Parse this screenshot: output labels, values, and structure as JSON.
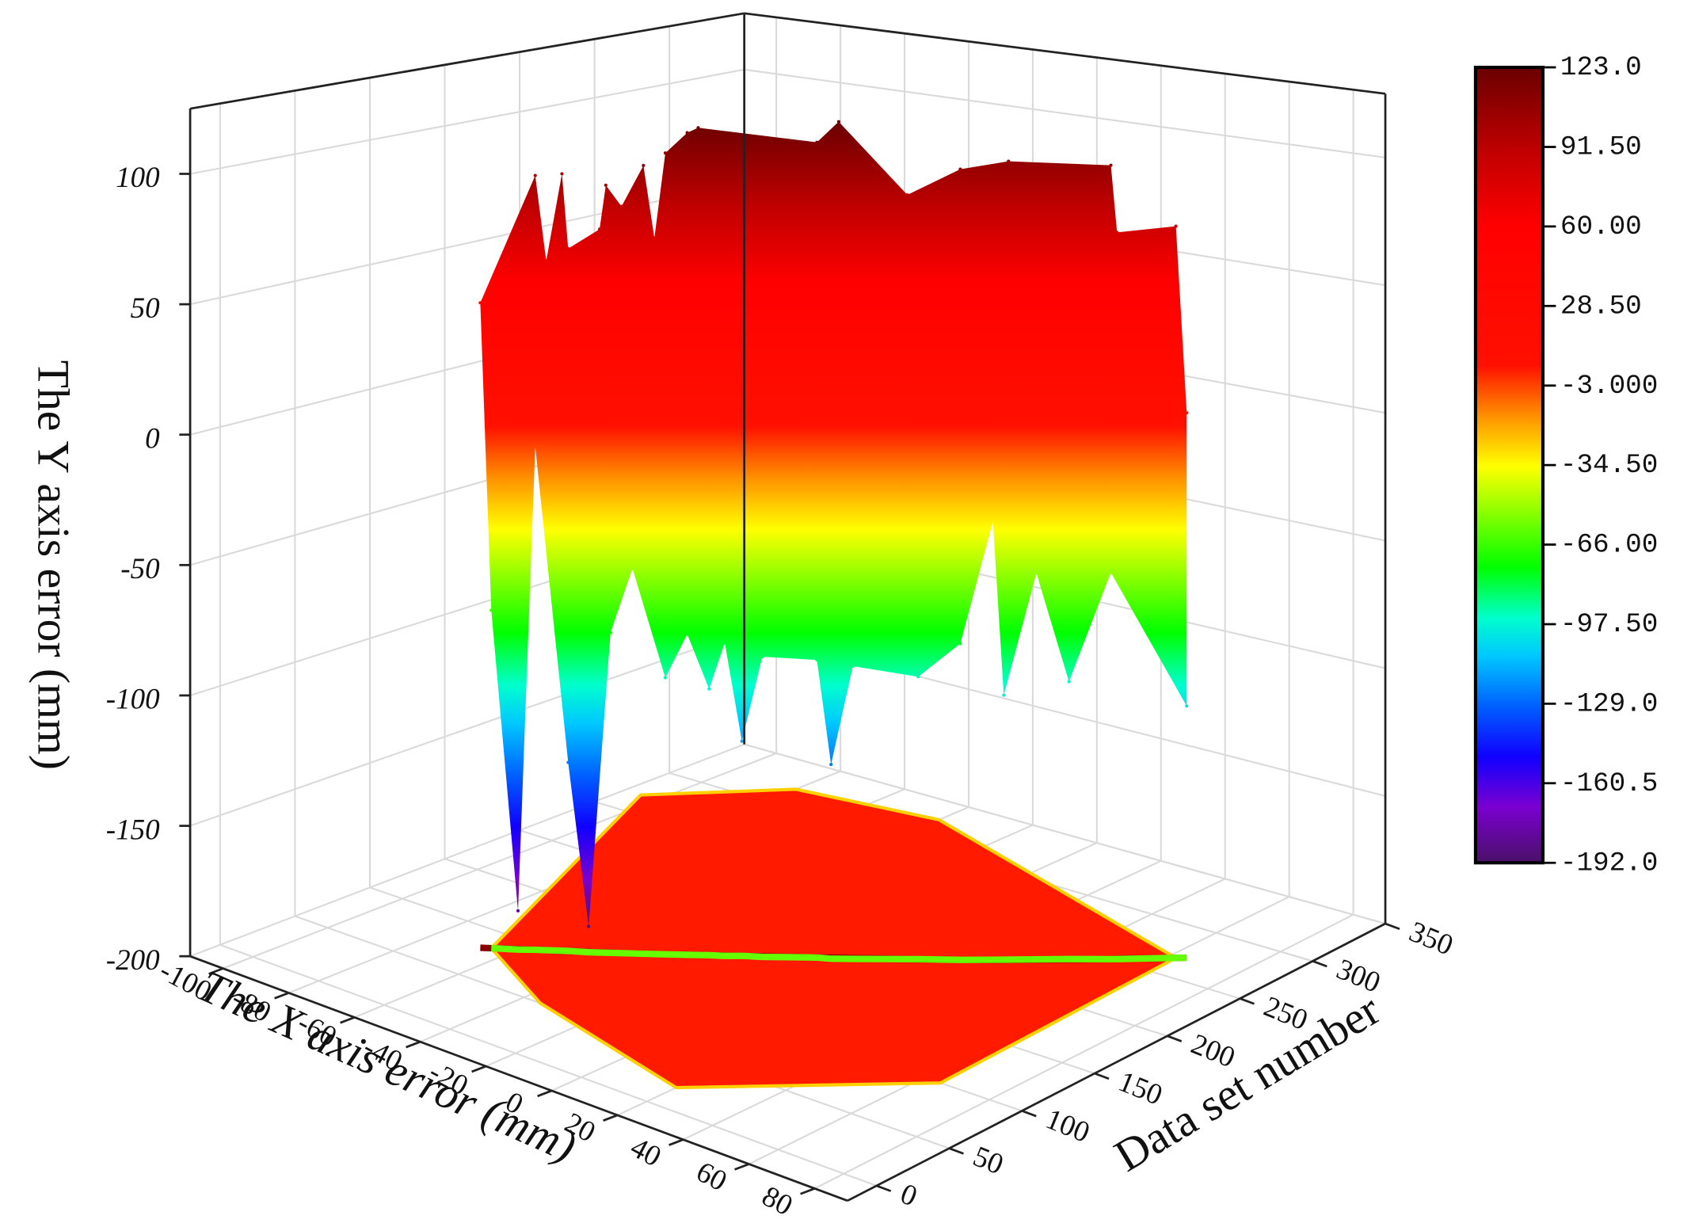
{
  "chart_data": {
    "type": "surface3d",
    "x_label": "The X axis error (mm)",
    "y_label": "Data set number",
    "z_label": "The Y axis error (mm)",
    "xlim": [
      -110,
      90
    ],
    "xticks": [
      -100,
      -80,
      -60,
      -40,
      -20,
      0,
      20,
      40,
      60,
      80
    ],
    "ylim": [
      -20,
      350
    ],
    "yticks": [
      0,
      50,
      100,
      150,
      200,
      250,
      300,
      350
    ],
    "zlim": [
      -200,
      125
    ],
    "zticks": [
      -200,
      -150,
      -100,
      -50,
      0,
      50,
      100
    ],
    "grid": true,
    "top_edge": {
      "x": [
        -67,
        -57,
        -55,
        -52,
        -51,
        -45,
        -44,
        -41,
        -37,
        -35,
        -33,
        -29,
        -27,
        -5,
        -1,
        12,
        22,
        31,
        50,
        51,
        62,
        64
      ],
      "y": [
        80,
        95,
        98,
        102,
        104,
        112,
        114,
        118,
        124,
        127,
        130,
        136,
        139,
        171,
        177,
        195,
        209,
        222,
        250,
        252,
        268,
        271
      ],
      "z": [
        50,
        100,
        67,
        101,
        72,
        80,
        97,
        89,
        105,
        77,
        110,
        118,
        120,
        115,
        123,
        95,
        105,
        108,
        106,
        80,
        82,
        10
      ]
    },
    "bottom_edge": {
      "x": [
        -65,
        -60,
        -57,
        -51,
        -47,
        -43,
        -39,
        -33,
        -29,
        -25,
        -22,
        -19,
        -15,
        -5,
        -2,
        2,
        14,
        22,
        28,
        30,
        36,
        42,
        50,
        64
      ],
      "y": [
        83,
        90,
        95,
        104,
        109,
        115,
        121,
        130,
        136,
        142,
        146,
        151,
        156,
        171,
        174,
        180,
        198,
        209,
        218,
        221,
        230,
        239,
        250,
        271
      ],
      "z": [
        -69,
        -185,
        -5,
        -127,
        -190,
        -76,
        -51,
        -93,
        -76,
        -97,
        -79,
        -117,
        -84,
        -85,
        -125,
        -87,
        -91,
        -78,
        -31,
        -98,
        -51,
        -93,
        -51,
        -103
      ]
    },
    "floor_outline": {
      "x": [
        -65,
        -105,
        -80,
        -40,
        62,
        65,
        20,
        -35
      ],
      "y": [
        83,
        270,
        320,
        330,
        268,
        100,
        20,
        50
      ]
    },
    "colorscale": {
      "values": [
        -192,
        -170,
        -150,
        -130,
        -110,
        -95,
        -75,
        -55,
        -35,
        -15,
        5,
        60,
        90,
        123
      ],
      "colors": [
        "#4a1068",
        "#7a00d0",
        "#1000ff",
        "#0060ff",
        "#00c8ff",
        "#00ffcc",
        "#00ff00",
        "#80ff00",
        "#ffff00",
        "#ff9000",
        "#ff1000",
        "#ff0000",
        "#c00000",
        "#6a0000"
      ]
    },
    "colorbar": {
      "lim": [
        -192,
        123
      ],
      "ticks": [
        {
          "value": 123,
          "label": "123.0"
        },
        {
          "value": 91.5,
          "label": "91.50"
        },
        {
          "value": 60,
          "label": "60.00"
        },
        {
          "value": 28.5,
          "label": "28.50"
        },
        {
          "value": -3,
          "label": "-3.000"
        },
        {
          "value": -34.5,
          "label": "-34.50"
        },
        {
          "value": -66,
          "label": "-66.00"
        },
        {
          "value": -97.5,
          "label": "-97.50"
        },
        {
          "value": -129,
          "label": "-129.0"
        },
        {
          "value": -160.5,
          "label": "-160.5"
        },
        {
          "value": -192,
          "label": "-192.0"
        }
      ]
    }
  }
}
